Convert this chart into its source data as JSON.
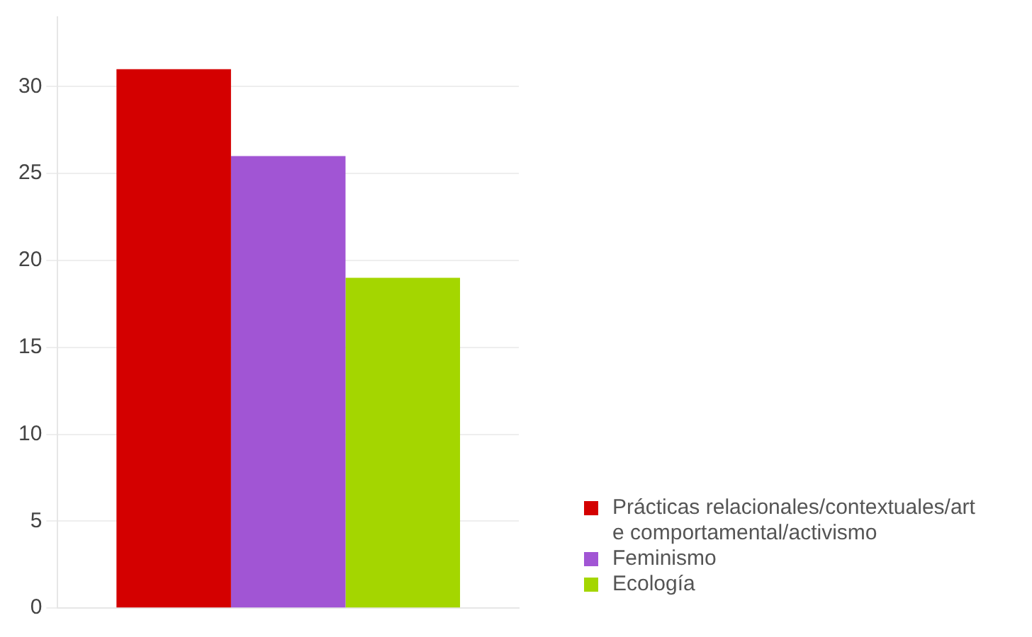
{
  "chart_data": {
    "type": "bar",
    "categories": [
      null
    ],
    "series": [
      {
        "name": "Prácticas relacionales/contextuales/arte comportamental/activismo",
        "color": "#d40000",
        "values": [
          31
        ]
      },
      {
        "name": "Feminismo",
        "color": "#a155d4",
        "values": [
          26
        ]
      },
      {
        "name": "Ecología",
        "color": "#a4d600",
        "values": [
          19
        ]
      }
    ],
    "ylim": [
      0,
      34
    ],
    "yticks": [
      0,
      5,
      10,
      15,
      20,
      25,
      30
    ],
    "grid": "y",
    "legend": "bottom right"
  }
}
